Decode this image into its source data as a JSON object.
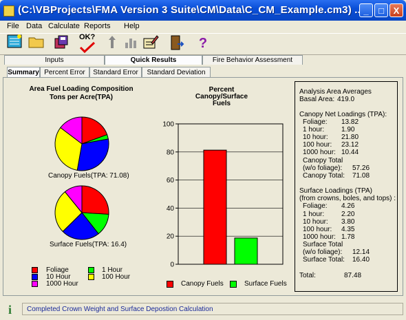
{
  "window": {
    "title": "(C:\\VBProjects\\FMA Version 3 Suite\\CM\\Data\\C_CM_Example.cm3) ...",
    "minimize": "_",
    "maximize": "□",
    "close": "X"
  },
  "menu": [
    "File",
    "Data",
    "Calculate",
    "Reports",
    "Help"
  ],
  "toolbar": {
    "question": "?",
    "ok_label": "OK?"
  },
  "tabs": [
    "Inputs",
    "Quick Results",
    "Fire Behavior Assessment"
  ],
  "active_tab": "Quick Results",
  "subtabs": [
    "Summary",
    "Percent Error",
    "Standard Error",
    "Standard Deviation"
  ],
  "active_subtab": "Summary",
  "colors": {
    "foliage": "#ff0000",
    "10_hour": "#0000ff",
    "1000_hour": "#ff00ff",
    "1_hour": "#00ff00",
    "100_hour": "#ffff00",
    "canopy": "#ff0000",
    "surface": "#00ff00"
  },
  "pie_section": {
    "title_line1": "Area Fuel Loading Composition",
    "title_line2": "Tons per Acre(TPA)",
    "canopy_caption": "Canopy Fuels(TPA: 71.08)",
    "surface_caption": "Surface Fuels(TPA: 16.4)",
    "legend": [
      {
        "label": "Foliage",
        "color": "#ff0000"
      },
      {
        "label": "1 Hour",
        "color": "#00ff00"
      },
      {
        "label": "10 Hour",
        "color": "#0000ff"
      },
      {
        "label": "100 Hour",
        "color": "#ffff00"
      },
      {
        "label": "1000 Hour",
        "color": "#ff00ff"
      }
    ]
  },
  "bar_section": {
    "title_line1": "Percent",
    "title_line2": "Canopy/Surface",
    "title_line3": "Fuels",
    "legend_canopy": "Canopy Fuels",
    "legend_surface": "Surface Fuels"
  },
  "chart_data": [
    {
      "type": "pie",
      "title": "Canopy Fuels(TPA: 71.08)",
      "categories": [
        "Foliage",
        "1 hour",
        "10 hour",
        "100 hour",
        "1000 hour"
      ],
      "values": [
        13.82,
        1.9,
        21.8,
        23.12,
        10.44
      ]
    },
    {
      "type": "pie",
      "title": "Surface Fuels(TPA: 16.4)",
      "categories": [
        "Foliage",
        "1 hour",
        "10 hour",
        "100 hour",
        "1000 hour"
      ],
      "values": [
        4.26,
        2.2,
        3.8,
        4.35,
        1.78
      ]
    },
    {
      "type": "bar",
      "title": "Percent Canopy/Surface Fuels",
      "categories": [
        "Canopy Fuels",
        "Surface Fuels"
      ],
      "values": [
        81.3,
        18.7
      ],
      "ylim": [
        0,
        100
      ],
      "yticks": [
        0,
        20,
        40,
        60,
        80,
        100
      ],
      "grid": true,
      "legend": "bottom"
    }
  ],
  "stats": {
    "heading": "Analysis Area Averages",
    "basal_label": "Basal Area:",
    "basal_value": "419.0",
    "canopy_heading": "Canopy Net Loadings (TPA):",
    "canopy_rows": [
      {
        "label": "Foliage:",
        "value": "13.82"
      },
      {
        "label": "1 hour:",
        "value": "1.90"
      },
      {
        "label": "10 hour:",
        "value": "21.80"
      },
      {
        "label": "100 hour:",
        "value": "23.12"
      },
      {
        "label": "1000 hour:",
        "value": "10.44"
      }
    ],
    "canopy_total_label": "Canopy Total",
    "canopy_wo_label": "(w/o foliage):",
    "canopy_wo_value": "57.26",
    "canopy_total2_label": "Canopy Total:",
    "canopy_total2_value": "71.08",
    "surface_heading1": "Surface Loadings (TPA)",
    "surface_heading2": "(from crowns, boles, and tops) :",
    "surface_rows": [
      {
        "label": "Foliage:",
        "value": "4.26"
      },
      {
        "label": "1 hour:",
        "value": "2.20"
      },
      {
        "label": "10 hour:",
        "value": "3.80"
      },
      {
        "label": "100 hour:",
        "value": "4.35"
      },
      {
        "label": "1000 hour:",
        "value": "1.78"
      }
    ],
    "surface_total_label": "Surface Total",
    "surface_wo_label": "(w/o foliage):",
    "surface_wo_value": "12.14",
    "surface_total2_label": "Surface Total:",
    "surface_total2_value": "16.40",
    "total_label": "Total:",
    "total_value": "87.48"
  },
  "status": {
    "icon": "i",
    "text": "Completed Crown Weight and Surface Depostion Calculation"
  }
}
